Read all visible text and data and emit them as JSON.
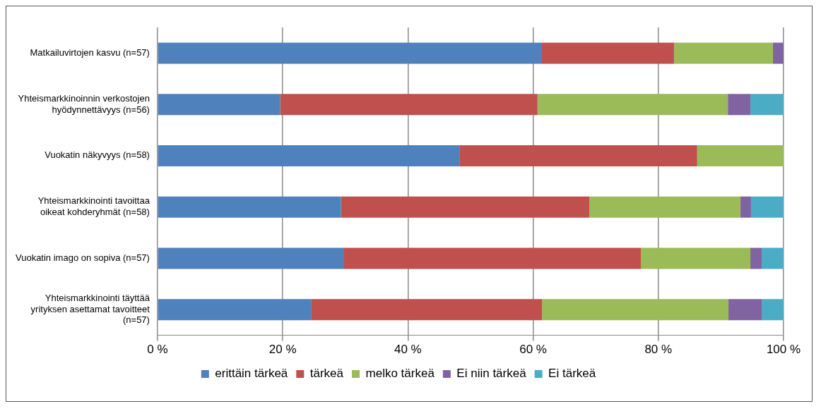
{
  "chart_data": {
    "type": "bar",
    "orientation": "horizontal",
    "stacked": true,
    "categories": [
      "Matkailuvirtojen kasvu (n=57)",
      "Yhteismarkkinoinnin verkostojen hyödynnettävyys (n=56)",
      "Vuokatin näkyvyys (n=58)",
      "Yhteismarkkinointi tavoittaa oikeat kohderyhmät (n=58)",
      "Vuokatin imago on sopiva (n=57)",
      "Yhteismarkkinointi täyttää yrityksen asettamat tavoitteet (n=57)"
    ],
    "series": [
      {
        "name": "erittäin tärkeä",
        "color": "#4f81bd",
        "values": [
          61.4,
          19.6,
          48.3,
          29.3,
          29.8,
          24.6
        ]
      },
      {
        "name": "tärkeä",
        "color": "#c0504d",
        "values": [
          21.1,
          41.1,
          37.9,
          39.7,
          47.4,
          36.8
        ]
      },
      {
        "name": "melko tärkeä",
        "color": "#9bbb59",
        "values": [
          15.8,
          30.4,
          13.8,
          24.1,
          17.5,
          29.8
        ]
      },
      {
        "name": "Ei niin tärkeä",
        "color": "#8064a2",
        "values": [
          1.8,
          3.6,
          0,
          1.7,
          1.8,
          5.3
        ]
      },
      {
        "name": "Ei tärkeä",
        "color": "#4bacc6",
        "values": [
          0,
          5.4,
          0,
          5.2,
          3.5,
          3.5
        ]
      }
    ],
    "xlim": [
      0,
      100
    ],
    "xticks": [
      {
        "value": 0,
        "label": "0 %"
      },
      {
        "value": 20,
        "label": "20 %"
      },
      {
        "value": 40,
        "label": "40 %"
      },
      {
        "value": 60,
        "label": "60 %"
      },
      {
        "value": 80,
        "label": "80 %"
      },
      {
        "value": 100,
        "label": "100 %"
      }
    ],
    "grid": "x",
    "legend": "bottom"
  }
}
